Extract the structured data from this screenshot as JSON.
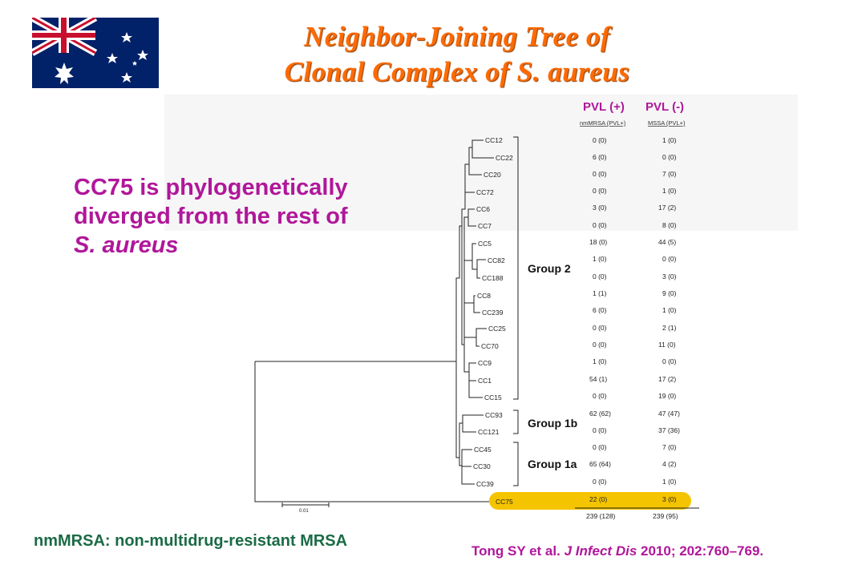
{
  "title": {
    "line1": "Neighbor-Joining Tree of",
    "line2": "Clonal Complex of S. aureus"
  },
  "claim": {
    "line1": "CC75 is phylogenetically",
    "line2": "diverged from the rest of",
    "line3": "S. aureus"
  },
  "columns": {
    "pvl_pos": "PVL (+)",
    "pvl_neg": "PVL (-)",
    "sub_pos": "nmMRSA (PVL+)",
    "sub_neg": "MSSA (PVL+)"
  },
  "groups": [
    {
      "label": "Group 2"
    },
    {
      "label": "Group 1b"
    },
    {
      "label": "Group 1a"
    }
  ],
  "rows": [
    {
      "cc": "CC12",
      "mrsa": "0 (0)",
      "mssa": "1 (0)"
    },
    {
      "cc": "CC22",
      "mrsa": "6 (0)",
      "mssa": "0 (0)"
    },
    {
      "cc": "CC20",
      "mrsa": "0 (0)",
      "mssa": "7 (0)"
    },
    {
      "cc": "CC72",
      "mrsa": "0 (0)",
      "mssa": "1 (0)"
    },
    {
      "cc": "CC6",
      "mrsa": "3 (0)",
      "mssa": "17 (2)"
    },
    {
      "cc": "CC7",
      "mrsa": "0 (0)",
      "mssa": "8 (0)"
    },
    {
      "cc": "CC5",
      "mrsa": "18 (0)",
      "mssa": "44 (5)"
    },
    {
      "cc": "CC82",
      "mrsa": "1 (0)",
      "mssa": "0 (0)"
    },
    {
      "cc": "CC188",
      "mrsa": "0 (0)",
      "mssa": "3 (0)"
    },
    {
      "cc": "CC8",
      "mrsa": "1 (1)",
      "mssa": "9 (0)"
    },
    {
      "cc": "CC239",
      "mrsa": "6 (0)",
      "mssa": "1 (0)"
    },
    {
      "cc": "CC25",
      "mrsa": "0 (0)",
      "mssa": "2 (1)"
    },
    {
      "cc": "CC70",
      "mrsa": "0 (0)",
      "mssa": "11 (0)"
    },
    {
      "cc": "CC9",
      "mrsa": "1 (0)",
      "mssa": "0 (0)"
    },
    {
      "cc": "CC1",
      "mrsa": "54 (1)",
      "mssa": "17 (2)"
    },
    {
      "cc": "CC15",
      "mrsa": "0 (0)",
      "mssa": "19 (0)"
    },
    {
      "cc": "CC93",
      "mrsa": "62 (62)",
      "mssa": "47 (47)"
    },
    {
      "cc": "CC121",
      "mrsa": "0 (0)",
      "mssa": "37 (36)"
    },
    {
      "cc": "CC45",
      "mrsa": "0 (0)",
      "mssa": "7 (0)"
    },
    {
      "cc": "CC30",
      "mrsa": "65 (64)",
      "mssa": "4 (2)"
    },
    {
      "cc": "CC39",
      "mrsa": "0 (0)",
      "mssa": "1 (0)"
    },
    {
      "cc": "CC75",
      "mrsa": "22 (0)",
      "mssa": "3 (0)"
    }
  ],
  "totals": {
    "mrsa": "239 (128)",
    "mssa": "239 (95)"
  },
  "scale_label": "0.01",
  "highlight_color": "#f5c400",
  "footnote": "nmMRSA: non-multidrug-resistant MRSA",
  "citation": {
    "authors": "Tong SY et al.",
    "journal": "J Infect Dis",
    "rest": "2010; 202:760–769."
  }
}
